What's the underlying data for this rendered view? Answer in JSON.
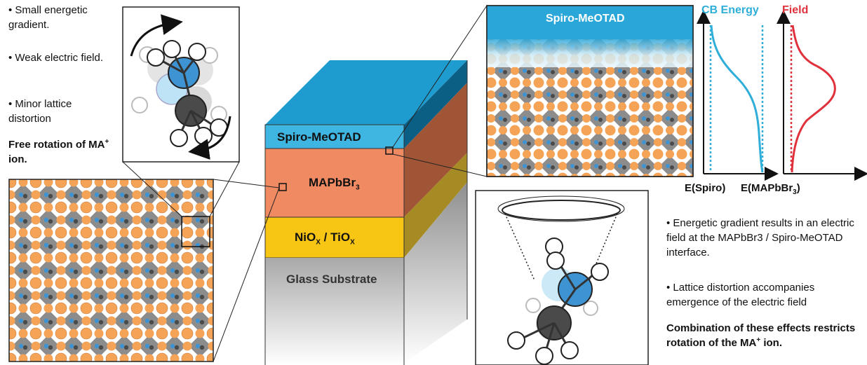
{
  "left_notes": {
    "bullet_1": "Small energetic gradient.",
    "bullet_2": "Weak electric field.",
    "bullet_3": "Minor lattice distortion",
    "summary_prefix": "Free rotation of MA",
    "summary_sup": "+",
    "summary_suffix": " ion."
  },
  "stack": {
    "spiro": "Spiro-MeOTAD",
    "mapbbr_main": "MAPbBr",
    "mapbbr_sub": "3",
    "nio_ni": "NiO",
    "nio_sub": "X",
    "nio_sep": " / TiO",
    "tio_sub": "X",
    "glass": "Glass Substrate"
  },
  "lattice_top_label": "Spiro-MeOTAD",
  "plots": {
    "cb_title": "CB Energy",
    "field_title": "Field",
    "x_label_left": "E(Spiro)",
    "x_label_right_main": "E(MAPbBr",
    "x_label_right_sub": "3",
    "x_label_right_end": ")"
  },
  "right_notes": {
    "bullet_1": "Energetic gradient results in an electric field at the MAPbBr3 / Spiro-MeOTAD interface.",
    "bullet_2": "Lattice distortion accompanies emergence of the electric field",
    "summary_prefix": "Combination of these effects restricts rotation of the MA",
    "summary_sup": "+",
    "summary_suffix": " ion."
  },
  "colors": {
    "spiro_blue": "#3fb6e2",
    "top_blue": "#0f86b6",
    "mapbbr_orange": "#ef8a62",
    "nio_yellow": "#f7c514",
    "atom_orange": "#f5a356",
    "atom_blue": "#3e94d3",
    "atom_dark": "#4a4a4a",
    "cb_curve": "#2eaed8",
    "field_curve": "#e0323c"
  }
}
